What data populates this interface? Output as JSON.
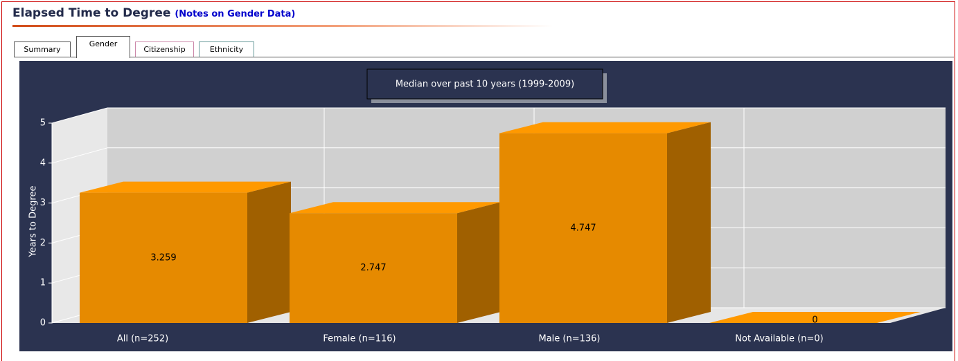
{
  "header": {
    "title": "Elapsed Time to Degree",
    "link": "(Notes on Gender Data)"
  },
  "tabs": [
    "Summary",
    "Gender",
    "Citizenship",
    "Ethnicity"
  ],
  "chart_data": {
    "type": "bar",
    "title": "Median over past 10 years (1999-2009)",
    "y_label": "Years to Degree",
    "categories": [
      "All (n=252)",
      "Female (n=116)",
      "Male (n=136)",
      "Not Available (n=0)"
    ],
    "values": [
      3.259,
      2.747,
      4.747,
      0
    ],
    "color": "#e68a00",
    "ylim": [
      0,
      5
    ],
    "yticks": [
      0,
      1,
      2,
      3,
      4,
      5
    ],
    "grid": true
  }
}
